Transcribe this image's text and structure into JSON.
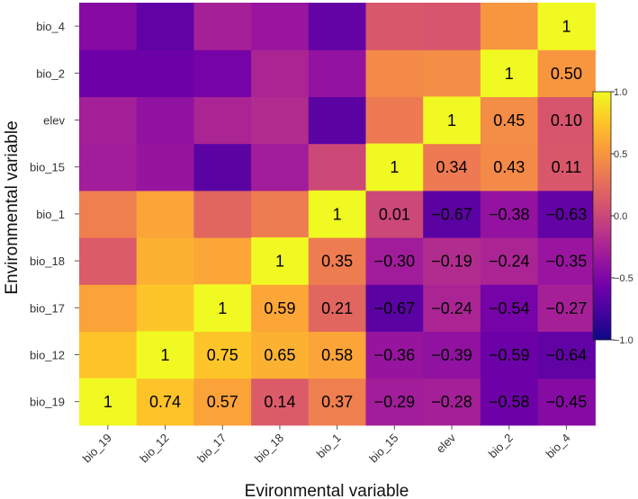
{
  "chart_data": {
    "type": "heatmap",
    "title": "",
    "xlabel": "Evironmental variable",
    "ylabel": "Environmental variable",
    "x_categories": [
      "bio_19",
      "bio_12",
      "bio_17",
      "bio_18",
      "bio_1",
      "bio_15",
      "elev",
      "bio_2",
      "bio_4"
    ],
    "y_categories_bottom_to_top": [
      "bio_19",
      "bio_12",
      "bio_17",
      "bio_18",
      "bio_1",
      "bio_15",
      "elev",
      "bio_2",
      "bio_4"
    ],
    "labeled_cells": [
      [
        "bio_19",
        "bio_19",
        1,
        "1"
      ],
      [
        "bio_12",
        "bio_19",
        0.74,
        "0.74"
      ],
      [
        "bio_17",
        "bio_19",
        0.57,
        "0.57"
      ],
      [
        "bio_18",
        "bio_19",
        0.14,
        "0.14"
      ],
      [
        "bio_1",
        "bio_19",
        0.37,
        "0.37"
      ],
      [
        "bio_15",
        "bio_19",
        -0.29,
        "−0.29"
      ],
      [
        "elev",
        "bio_19",
        -0.28,
        "−0.28"
      ],
      [
        "bio_2",
        "bio_19",
        -0.58,
        "−0.58"
      ],
      [
        "bio_4",
        "bio_19",
        -0.45,
        "−0.45"
      ],
      [
        "bio_12",
        "bio_12",
        1,
        "1"
      ],
      [
        "bio_17",
        "bio_12",
        0.75,
        "0.75"
      ],
      [
        "bio_18",
        "bio_12",
        0.65,
        "0.65"
      ],
      [
        "bio_1",
        "bio_12",
        0.58,
        "0.58"
      ],
      [
        "bio_15",
        "bio_12",
        -0.36,
        "−0.36"
      ],
      [
        "elev",
        "bio_12",
        -0.39,
        "−0.39"
      ],
      [
        "bio_2",
        "bio_12",
        -0.59,
        "−0.59"
      ],
      [
        "bio_4",
        "bio_12",
        -0.64,
        "−0.64"
      ],
      [
        "bio_17",
        "bio_17",
        1,
        "1"
      ],
      [
        "bio_18",
        "bio_17",
        0.59,
        "0.59"
      ],
      [
        "bio_1",
        "bio_17",
        0.21,
        "0.21"
      ],
      [
        "bio_15",
        "bio_17",
        -0.67,
        "−0.67"
      ],
      [
        "elev",
        "bio_17",
        -0.24,
        "−0.24"
      ],
      [
        "bio_2",
        "bio_17",
        -0.54,
        "−0.54"
      ],
      [
        "bio_4",
        "bio_17",
        -0.27,
        "−0.27"
      ],
      [
        "bio_18",
        "bio_18",
        1,
        "1"
      ],
      [
        "bio_1",
        "bio_18",
        0.35,
        "0.35"
      ],
      [
        "bio_15",
        "bio_18",
        -0.3,
        "−0.30"
      ],
      [
        "elev",
        "bio_18",
        -0.19,
        "−0.19"
      ],
      [
        "bio_2",
        "bio_18",
        -0.24,
        "−0.24"
      ],
      [
        "bio_4",
        "bio_18",
        -0.35,
        "−0.35"
      ],
      [
        "bio_1",
        "bio_1",
        1,
        "1"
      ],
      [
        "bio_15",
        "bio_1",
        0.01,
        "0.01"
      ],
      [
        "elev",
        "bio_1",
        -0.67,
        "−0.67"
      ],
      [
        "bio_2",
        "bio_1",
        -0.38,
        "−0.38"
      ],
      [
        "bio_4",
        "bio_1",
        -0.63,
        "−0.63"
      ],
      [
        "bio_15",
        "bio_15",
        1,
        "1"
      ],
      [
        "elev",
        "bio_15",
        0.34,
        "0.34"
      ],
      [
        "bio_2",
        "bio_15",
        0.43,
        "0.43"
      ],
      [
        "bio_4",
        "bio_15",
        0.11,
        "0.11"
      ],
      [
        "elev",
        "elev",
        1,
        "1"
      ],
      [
        "bio_2",
        "elev",
        0.45,
        "0.45"
      ],
      [
        "bio_4",
        "elev",
        0.1,
        "0.10"
      ],
      [
        "bio_2",
        "bio_2",
        1,
        "1"
      ],
      [
        "bio_4",
        "bio_2",
        0.5,
        "0.50"
      ],
      [
        "bio_4",
        "bio_4",
        1,
        "1"
      ]
    ],
    "unlabeled_mirror_cells": [
      [
        "bio_19",
        "bio_12",
        0.74
      ],
      [
        "bio_19",
        "bio_17",
        0.57
      ],
      [
        "bio_19",
        "bio_18",
        0.14
      ],
      [
        "bio_19",
        "bio_1",
        0.37
      ],
      [
        "bio_19",
        "bio_15",
        -0.29
      ],
      [
        "bio_19",
        "elev",
        -0.28
      ],
      [
        "bio_19",
        "bio_2",
        -0.58
      ],
      [
        "bio_19",
        "bio_4",
        -0.45
      ],
      [
        "bio_12",
        "bio_17",
        0.75
      ],
      [
        "bio_12",
        "bio_18",
        0.65
      ],
      [
        "bio_12",
        "bio_1",
        0.58
      ],
      [
        "bio_12",
        "bio_15",
        -0.36
      ],
      [
        "bio_12",
        "elev",
        -0.39
      ],
      [
        "bio_12",
        "bio_2",
        -0.59
      ],
      [
        "bio_12",
        "bio_4",
        -0.64
      ],
      [
        "bio_17",
        "bio_18",
        0.59
      ],
      [
        "bio_17",
        "bio_1",
        0.21
      ],
      [
        "bio_17",
        "bio_15",
        -0.67
      ],
      [
        "bio_17",
        "elev",
        -0.24
      ],
      [
        "bio_17",
        "bio_2",
        -0.54
      ],
      [
        "bio_17",
        "bio_4",
        -0.27
      ],
      [
        "bio_18",
        "bio_1",
        0.35
      ],
      [
        "bio_18",
        "bio_15",
        -0.3
      ],
      [
        "bio_18",
        "elev",
        -0.19
      ],
      [
        "bio_18",
        "bio_2",
        -0.24
      ],
      [
        "bio_18",
        "bio_4",
        -0.35
      ],
      [
        "bio_1",
        "bio_15",
        0.01
      ],
      [
        "bio_1",
        "elev",
        -0.67
      ],
      [
        "bio_1",
        "bio_2",
        -0.38
      ],
      [
        "bio_1",
        "bio_4",
        -0.63
      ],
      [
        "bio_15",
        "elev",
        0.34
      ],
      [
        "bio_15",
        "bio_2",
        0.43
      ],
      [
        "bio_15",
        "bio_4",
        0.11
      ],
      [
        "elev",
        "bio_2",
        0.45
      ],
      [
        "elev",
        "bio_4",
        0.1
      ],
      [
        "bio_2",
        "bio_4",
        0.5
      ]
    ],
    "colorscale": {
      "name": "plasma",
      "range": [
        -1,
        1
      ],
      "ticks": [
        1,
        0.5,
        0,
        -0.5,
        -1
      ],
      "tick_labels": [
        "1.0",
        "0.5",
        "0.0",
        "−0.5",
        "−1.0"
      ],
      "stops": [
        "#0d0887",
        "#46039f",
        "#7201a8",
        "#9c179e",
        "#bd3786",
        "#d8576b",
        "#ed7953",
        "#fb9f3a",
        "#fdca26",
        "#f0f921"
      ]
    },
    "legend_position": "right",
    "grid": false
  }
}
